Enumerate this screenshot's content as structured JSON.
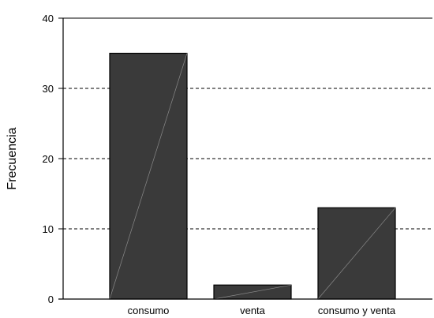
{
  "chart_data": {
    "type": "bar",
    "title": "",
    "xlabel": "",
    "ylabel": "Frecuencia",
    "categories": [
      "consumo",
      "venta",
      "consumo y venta"
    ],
    "values": [
      35,
      2,
      13
    ],
    "ylim": [
      0,
      40
    ],
    "yticks": [
      "0",
      "10",
      "20",
      "30",
      "40"
    ],
    "grid": "horizontal dashed",
    "legend": "none",
    "colors": {
      "bar_fill": "#3a3a3a",
      "bar_stroke": "#000000",
      "bar_diagonal": "#8a8a8a",
      "grid": "#000000",
      "axis": "#000000"
    }
  }
}
